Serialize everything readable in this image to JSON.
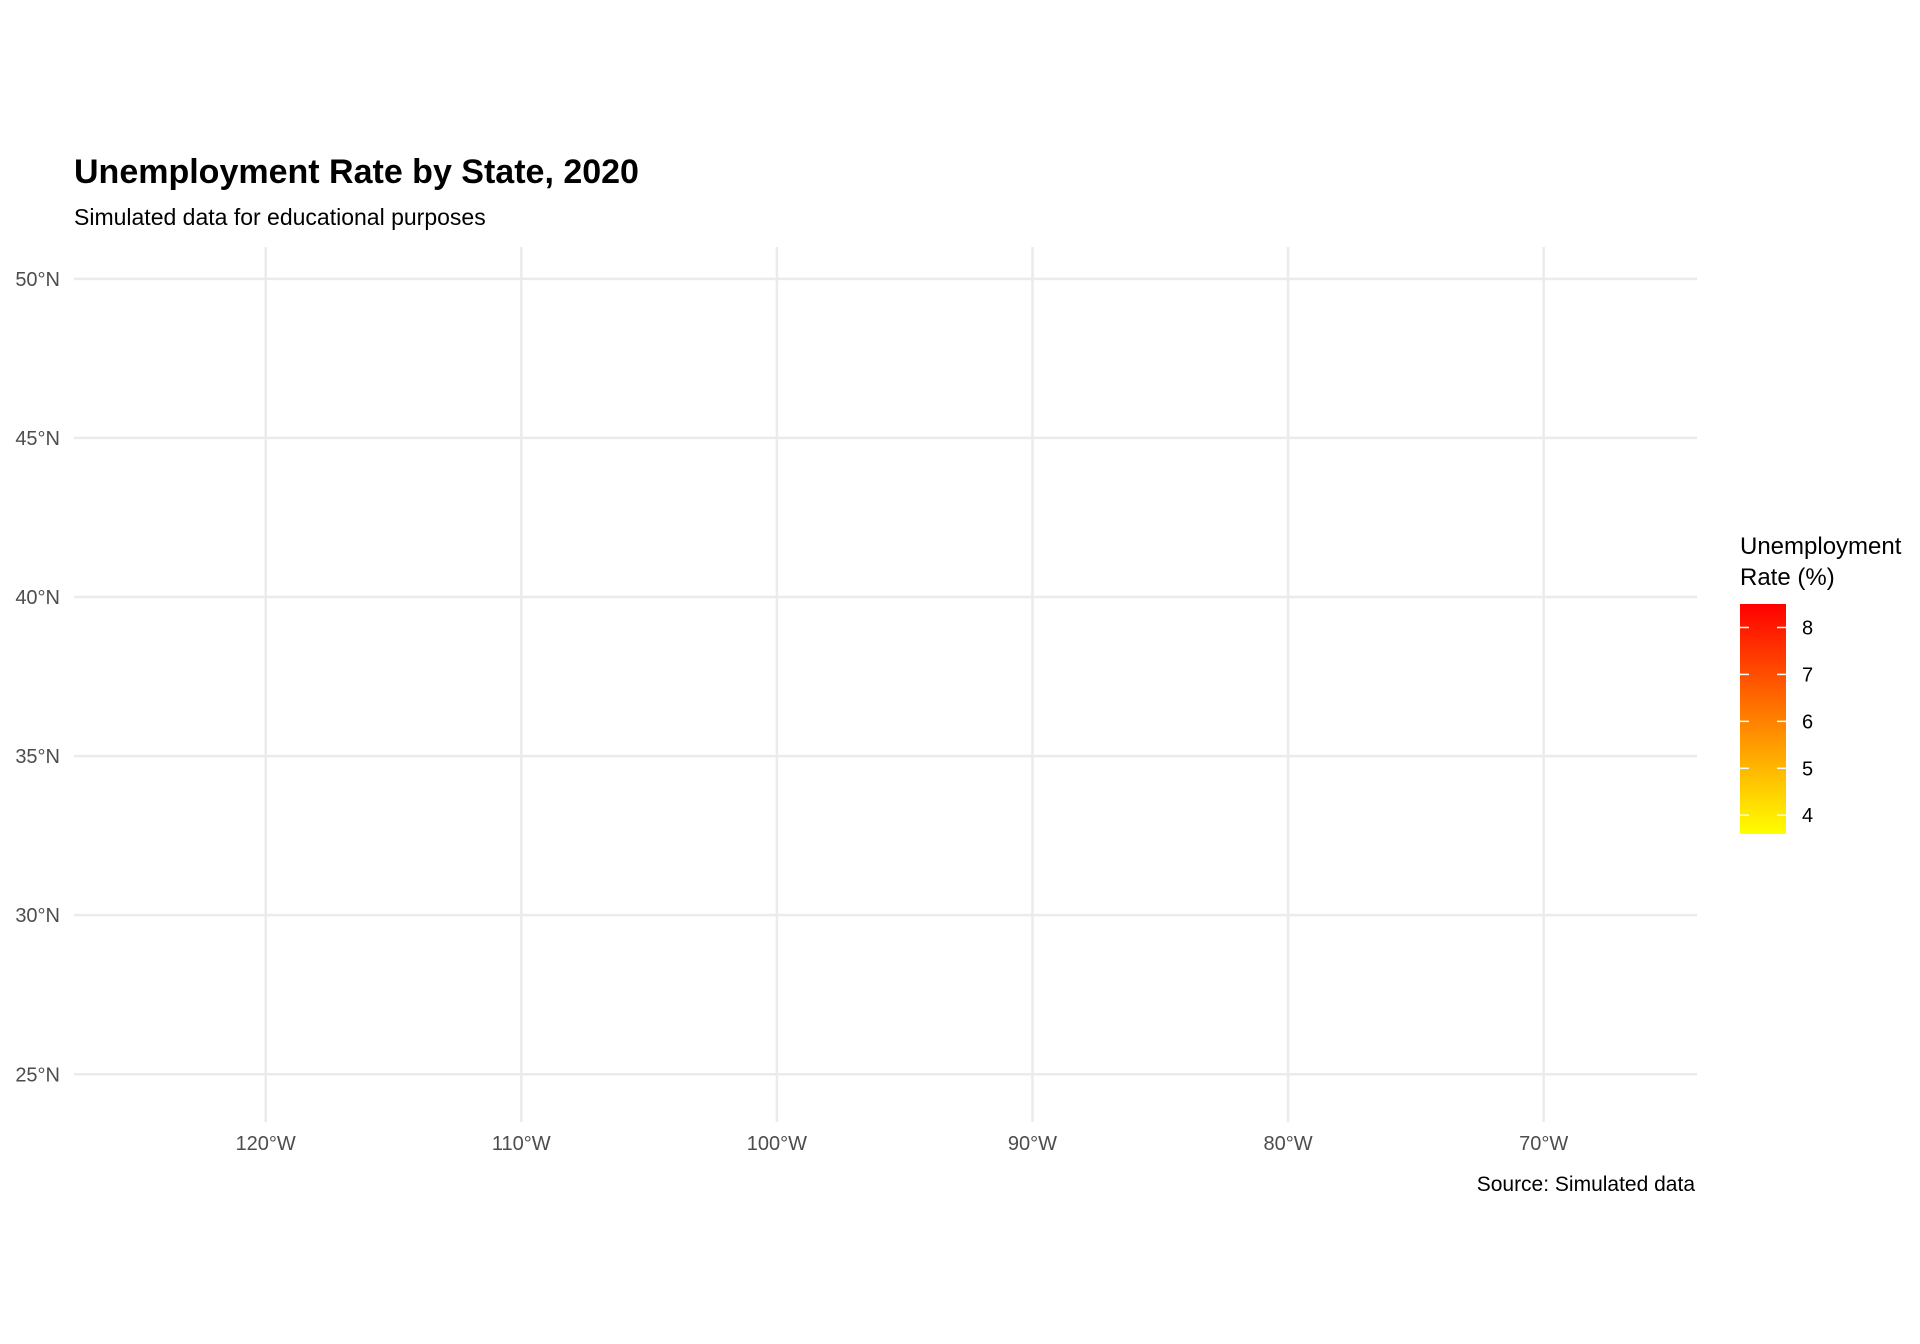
{
  "title": "Unemployment Rate by State, 2020",
  "subtitle": "Simulated data for educational purposes",
  "caption": "Source: Simulated data",
  "colors": {
    "background": "#ffffff",
    "grid": "#ebebeb",
    "tick_label": "#4d4d4d",
    "scale_low": "#ffff00",
    "scale_high": "#ff0000"
  },
  "chart_data": {
    "type": "heatmap",
    "title": "Unemployment Rate by State, 2020",
    "subtitle": "Simulated data for educational purposes",
    "caption": "Source: Simulated data",
    "xlim": [
      -127.5,
      -64
    ],
    "ylim": [
      23.5,
      51
    ],
    "x_ticks": [
      -120,
      -110,
      -100,
      -90,
      -80,
      -70
    ],
    "x_tick_labels": [
      "120°W",
      "110°W",
      "100°W",
      "90°W",
      "80°W",
      "70°W"
    ],
    "y_ticks": [
      50,
      45,
      40,
      35,
      30,
      25
    ],
    "y_tick_labels": [
      "50°N",
      "45°N",
      "40°N",
      "35°N",
      "30°N",
      "25°N"
    ],
    "grid": true,
    "legend": {
      "title_lines": [
        "Unemployment",
        "Rate (%)"
      ],
      "placement": "right",
      "range": [
        3.6,
        8.5
      ],
      "breaks": [
        8,
        7,
        6,
        5,
        4
      ],
      "break_labels": [
        "8",
        "7",
        "6",
        "5",
        "4"
      ],
      "color_low": "#ffff00",
      "color_high": "#ff0000"
    },
    "regions": []
  }
}
